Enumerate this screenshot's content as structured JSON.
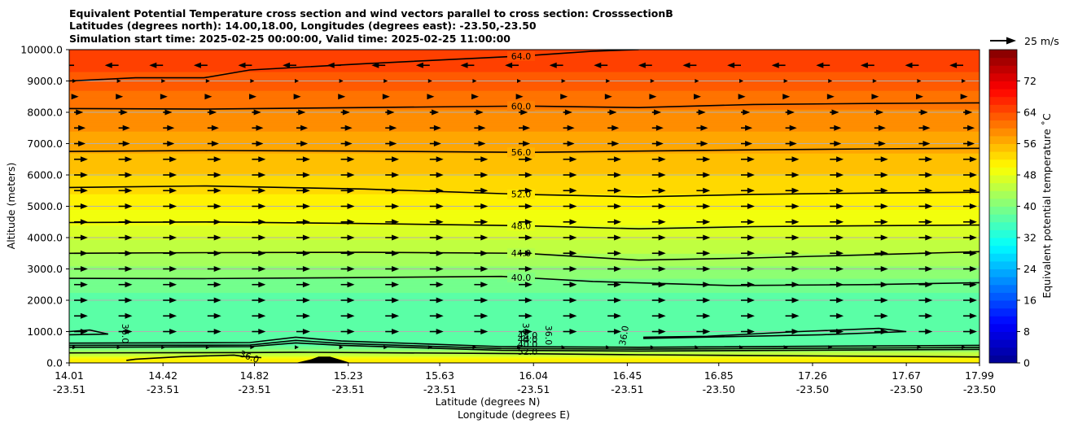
{
  "chart_data": {
    "type": "heatmap",
    "title_lines": [
      "Equivalent Potential Temperature cross section and wind vectors parallel to cross section: CrosssectionB",
      "Latitudes (degrees north): 14.00,18.00, Longitudes (degrees east): -23.50,-23.50",
      "Simulation start time: 2025-02-25 00:00:00, Valid time: 2025-02-25 11:00:00"
    ],
    "ylabel": "Altitude (meters)",
    "xlabel_lat": "Latitude (degrees N)",
    "xlabel_lon": "Longitude (degrees E)",
    "ylim": [
      0,
      10000
    ],
    "xlim": [
      14.01,
      17.99
    ],
    "y_ticks": [
      {
        "value": 0,
        "label": "0.0"
      },
      {
        "value": 1000,
        "label": "1000.0"
      },
      {
        "value": 2000,
        "label": "2000.0"
      },
      {
        "value": 3000,
        "label": "3000.0"
      },
      {
        "value": 4000,
        "label": "4000.0"
      },
      {
        "value": 5000,
        "label": "5000.0"
      },
      {
        "value": 6000,
        "label": "6000.0"
      },
      {
        "value": 7000,
        "label": "7000.0"
      },
      {
        "value": 8000,
        "label": "8000.0"
      },
      {
        "value": 9000,
        "label": "9000.0"
      },
      {
        "value": 10000,
        "label": "10000.0"
      }
    ],
    "x_ticks": [
      {
        "lat": 14.01,
        "label_lat": "14.01",
        "label_lon": "-23.51"
      },
      {
        "lat": 14.42,
        "label_lat": "14.42",
        "label_lon": "-23.51"
      },
      {
        "lat": 14.82,
        "label_lat": "14.82",
        "label_lon": "-23.51"
      },
      {
        "lat": 15.23,
        "label_lat": "15.23",
        "label_lon": "-23.51"
      },
      {
        "lat": 15.63,
        "label_lat": "15.63",
        "label_lon": "-23.51"
      },
      {
        "lat": 16.04,
        "label_lat": "16.04",
        "label_lon": "-23.51"
      },
      {
        "lat": 16.45,
        "label_lat": "16.45",
        "label_lon": "-23.51"
      },
      {
        "lat": 16.85,
        "label_lat": "16.85",
        "label_lon": "-23.50"
      },
      {
        "lat": 17.26,
        "label_lat": "17.26",
        "label_lon": "-23.50"
      },
      {
        "lat": 17.67,
        "label_lat": "17.67",
        "label_lon": "-23.50"
      },
      {
        "lat": 17.99,
        "label_lat": "17.99",
        "label_lon": "-23.50"
      }
    ],
    "colorbar": {
      "label": "Equivalent potential temperature ˚C",
      "range": [
        0,
        80
      ],
      "tick_values": [
        0,
        8,
        16,
        24,
        32,
        40,
        48,
        56,
        64,
        72
      ],
      "colors": [
        "#00008f",
        "#0000ff",
        "#0080ff",
        "#00ffff",
        "#80ff80",
        "#ffff00",
        "#ff8000",
        "#ff0000",
        "#800000"
      ]
    },
    "quiver_key": {
      "label": "25 m/s",
      "value": 25
    },
    "theta_e_profile": [
      {
        "z": 0,
        "v": 51
      },
      {
        "z": 150,
        "v": 50
      },
      {
        "z": 300,
        "v": 45
      },
      {
        "z": 450,
        "v": 40
      },
      {
        "z": 600,
        "v": 37
      },
      {
        "z": 1000,
        "v": 36
      },
      {
        "z": 2000,
        "v": 37
      },
      {
        "z": 2700,
        "v": 40
      },
      {
        "z": 3500,
        "v": 44
      },
      {
        "z": 4400,
        "v": 48
      },
      {
        "z": 5400,
        "v": 52
      },
      {
        "z": 6700,
        "v": 56
      },
      {
        "z": 8100,
        "v": 60
      },
      {
        "z": 9300,
        "v": 64
      },
      {
        "z": 10000,
        "v": 66
      }
    ],
    "contours": [
      {
        "level": 40,
        "label": "40.0",
        "points": [
          [
            14.01,
            2700
          ],
          [
            14.6,
            2690
          ],
          [
            15.2,
            2720
          ],
          [
            15.9,
            2760
          ],
          [
            16.3,
            2600
          ],
          [
            16.9,
            2470
          ],
          [
            17.5,
            2500
          ],
          [
            17.99,
            2560
          ]
        ]
      },
      {
        "level": 44,
        "label": "44.0",
        "points": [
          [
            14.01,
            3500
          ],
          [
            14.6,
            3520
          ],
          [
            15.3,
            3530
          ],
          [
            16.0,
            3500
          ],
          [
            16.5,
            3280
          ],
          [
            17.0,
            3350
          ],
          [
            17.5,
            3450
          ],
          [
            17.99,
            3550
          ]
        ]
      },
      {
        "level": 48,
        "label": "48.0",
        "points": [
          [
            14.01,
            4480
          ],
          [
            14.6,
            4500
          ],
          [
            15.3,
            4450
          ],
          [
            16.0,
            4380
          ],
          [
            16.5,
            4280
          ],
          [
            17.0,
            4350
          ],
          [
            17.5,
            4380
          ],
          [
            17.99,
            4400
          ]
        ]
      },
      {
        "level": 52,
        "label": "52.0",
        "points": [
          [
            14.01,
            5600
          ],
          [
            14.6,
            5650
          ],
          [
            15.3,
            5550
          ],
          [
            16.0,
            5380
          ],
          [
            16.5,
            5300
          ],
          [
            17.0,
            5380
          ],
          [
            17.5,
            5420
          ],
          [
            17.99,
            5450
          ]
        ]
      },
      {
        "level": 56,
        "label": "56.0",
        "points": [
          [
            14.01,
            6750
          ],
          [
            14.6,
            6780
          ],
          [
            15.3,
            6760
          ],
          [
            16.0,
            6720
          ],
          [
            16.5,
            6760
          ],
          [
            17.0,
            6800
          ],
          [
            17.5,
            6830
          ],
          [
            17.99,
            6850
          ]
        ]
      },
      {
        "level": 60,
        "label": "60.0",
        "points": [
          [
            14.01,
            8120
          ],
          [
            14.6,
            8100
          ],
          [
            15.3,
            8150
          ],
          [
            16.0,
            8200
          ],
          [
            16.5,
            8150
          ],
          [
            17.0,
            8250
          ],
          [
            17.5,
            8280
          ],
          [
            17.99,
            8300
          ]
        ]
      },
      {
        "level": 64,
        "label": "64.0",
        "points": [
          [
            14.01,
            9000
          ],
          [
            14.3,
            9100
          ],
          [
            14.6,
            9100
          ],
          [
            14.8,
            9350
          ],
          [
            15.3,
            9550
          ],
          [
            16.0,
            9800
          ],
          [
            16.3,
            9950
          ],
          [
            16.5,
            10000
          ]
        ]
      },
      {
        "level": 48,
        "label": "48.0",
        "points": [
          [
            14.01,
            630
          ],
          [
            14.8,
            650
          ],
          [
            15.0,
            820
          ],
          [
            15.2,
            700
          ],
          [
            15.9,
            520
          ],
          [
            16.5,
            500
          ],
          [
            17.99,
            560
          ]
        ]
      },
      {
        "level": 44,
        "label": "44.0",
        "points": [
          [
            14.01,
            560
          ],
          [
            14.8,
            570
          ],
          [
            15.0,
            720
          ],
          [
            15.2,
            620
          ],
          [
            15.9,
            460
          ],
          [
            16.5,
            440
          ],
          [
            17.99,
            490
          ]
        ]
      },
      {
        "level": 40,
        "label": "40.0",
        "points": [
          [
            14.01,
            500
          ],
          [
            14.8,
            520
          ],
          [
            15.0,
            640
          ],
          [
            15.2,
            560
          ],
          [
            15.9,
            400
          ],
          [
            16.5,
            380
          ],
          [
            17.99,
            430
          ]
        ]
      },
      {
        "level": 36,
        "label": "36.0",
        "points": [
          [
            14.01,
            1000
          ],
          [
            14.1,
            1050
          ],
          [
            14.18,
            920
          ],
          [
            14.01,
            900
          ]
        ]
      },
      {
        "level": 36,
        "label": "36.0",
        "points": [
          [
            16.52,
            820
          ],
          [
            16.8,
            850
          ],
          [
            17.2,
            1000
          ],
          [
            17.55,
            1100
          ],
          [
            17.67,
            1000
          ],
          [
            17.3,
            900
          ],
          [
            16.9,
            840
          ],
          [
            16.52,
            780
          ]
        ]
      },
      {
        "level": 52,
        "label": "52.0",
        "points": [
          [
            14.01,
            320
          ],
          [
            14.8,
            330
          ],
          [
            15.0,
            340
          ],
          [
            15.9,
            300
          ],
          [
            16.5,
            260
          ],
          [
            17.99,
            190
          ]
        ]
      },
      {
        "level": 36,
        "label": "36.0",
        "points": [
          [
            14.26,
            80
          ],
          [
            14.3,
            120
          ],
          [
            14.5,
            200
          ],
          [
            14.73,
            250
          ],
          [
            14.78,
            200
          ],
          [
            14.85,
            170
          ]
        ]
      }
    ],
    "terrain": [
      [
        15.0,
        0
      ],
      [
        15.07,
        120
      ],
      [
        15.1,
        200
      ],
      [
        15.15,
        200
      ],
      [
        15.2,
        90
      ],
      [
        15.24,
        0
      ]
    ],
    "wind_rows": [
      {
        "z": 9500,
        "u": -6
      },
      {
        "z": 9000,
        "u": 0
      },
      {
        "z": 8500,
        "u": 2
      },
      {
        "z": 8000,
        "u": 4
      },
      {
        "z": 7500,
        "u": 5
      },
      {
        "z": 7000,
        "u": 5
      },
      {
        "z": 6500,
        "u": 6
      },
      {
        "z": 6000,
        "u": 6
      },
      {
        "z": 5500,
        "u": 6
      },
      {
        "z": 5000,
        "u": 6
      },
      {
        "z": 4500,
        "u": 6
      },
      {
        "z": 4000,
        "u": 6
      },
      {
        "z": 3500,
        "u": 6
      },
      {
        "z": 3000,
        "u": 6
      },
      {
        "z": 2500,
        "u": 6
      },
      {
        "z": 2000,
        "u": 6
      },
      {
        "z": 1500,
        "u": 6
      },
      {
        "z": 1000,
        "u": 6
      },
      {
        "z": 500,
        "u": 1
      }
    ]
  }
}
